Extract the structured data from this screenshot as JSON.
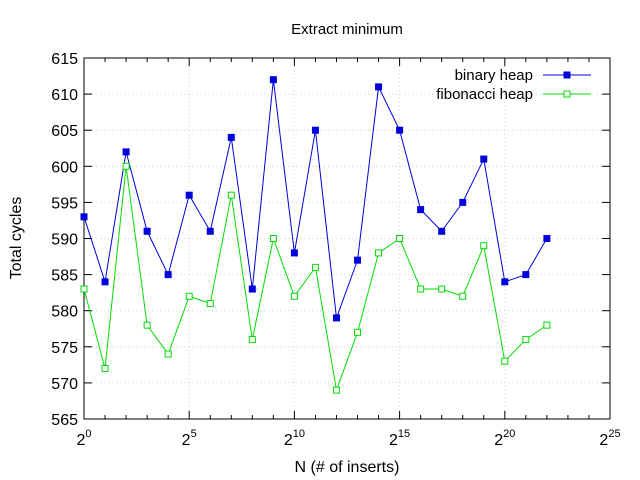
{
  "chart_data": {
    "type": "line",
    "title": "Extract minimum",
    "xlabel": "N (# of inserts)",
    "ylabel": "Total cycles",
    "x_scale": "log2",
    "x_tick_base": "2",
    "x_tick_exponents": [
      "0",
      "5",
      "10",
      "15",
      "20",
      "25"
    ],
    "y_ticks": [
      "565",
      "570",
      "575",
      "580",
      "585",
      "590",
      "595",
      "600",
      "605",
      "610",
      "615"
    ],
    "ylim": [
      565,
      615
    ],
    "grid": true,
    "legend_position": "top-right",
    "x_exponents": [
      0,
      1,
      2,
      3,
      4,
      5,
      6,
      7,
      8,
      9,
      10,
      11,
      12,
      13,
      14,
      15,
      16,
      17,
      18,
      19,
      20,
      21,
      22
    ],
    "series": [
      {
        "name": "binary heap",
        "color": "#0000dd",
        "marker": "filled-square",
        "values": [
          593,
          584,
          602,
          591,
          585,
          596,
          591,
          604,
          583,
          612,
          588,
          605,
          579,
          587,
          611,
          605,
          594,
          591,
          595,
          601,
          584,
          585,
          590
        ]
      },
      {
        "name": "fibonacci heap",
        "color": "#00dd00",
        "marker": "open-square",
        "values": [
          583,
          572,
          600,
          578,
          574,
          582,
          581,
          596,
          576,
          590,
          582,
          586,
          569,
          577,
          588,
          590,
          583,
          583,
          582,
          589,
          573,
          576,
          578
        ]
      }
    ]
  }
}
